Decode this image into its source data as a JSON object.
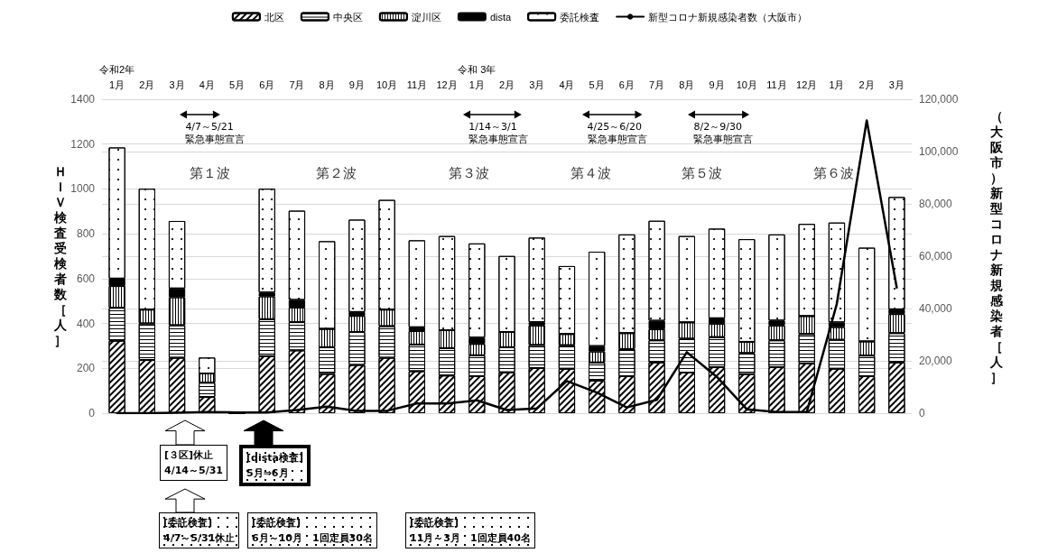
{
  "chart_data": {
    "type": "bar",
    "stacked": true,
    "categories": [
      "令和2年\n1月",
      "2月",
      "3月",
      "4月",
      "5月",
      "6月",
      "7月",
      "8月",
      "9月",
      "10月",
      "11月",
      "12月",
      "令和 3年\n1月",
      "2月",
      "3月",
      "4月",
      "5月",
      "6月",
      "7月",
      "8月",
      "9月",
      "10月",
      "11月",
      "12月",
      "1月",
      "2月",
      "3月"
    ],
    "ylabel": "ＨＩＶ検査受検者数［人］",
    "y2label": "（大阪市）新型コロナ新規感染者［人］",
    "series": [
      {
        "name": "北区",
        "color": "#000000",
        "values": [
          323,
          237,
          247,
          72,
          0,
          254,
          280,
          175,
          215,
          247,
          187,
          168,
          165,
          182,
          201,
          198,
          145,
          165,
          226,
          181,
          205,
          174,
          205,
          222,
          198,
          165,
          226
        ]
      },
      {
        "name": "中央区",
        "color": "#000000",
        "values": [
          147,
          163,
          145,
          64,
          0,
          165,
          126,
          119,
          147,
          141,
          119,
          122,
          93,
          112,
          103,
          105,
          81,
          121,
          99,
          151,
          134,
          94,
          120,
          131,
          129,
          92,
          131
        ]
      },
      {
        "name": "淀川区",
        "color": "#000000",
        "values": [
          97,
          62,
          125,
          41,
          0,
          102,
          65,
          82,
          72,
          74,
          60,
          80,
          51,
          68,
          87,
          50,
          49,
          71,
          49,
          73,
          60,
          50,
          66,
          80,
          57,
          63,
          85
        ]
      },
      {
        "name": "dista",
        "color": "#000000",
        "values": [
          33,
          0,
          39,
          0,
          0,
          17,
          34,
          0,
          17,
          0,
          17,
          0,
          28,
          0,
          15,
          0,
          24,
          0,
          38,
          0,
          24,
          0,
          22,
          0,
          21,
          0,
          21
        ]
      },
      {
        "name": "委託検査",
        "color": "#000000",
        "values": [
          585,
          539,
          301,
          71,
          0,
          463,
          398,
          391,
          412,
          489,
          388,
          420,
          420,
          339,
          377,
          303,
          421,
          440,
          446,
          385,
          400,
          458,
          384,
          411,
          445,
          418,
          501
        ]
      },
      {
        "name": "新型コロナ新規感染者数（大阪市）",
        "type": "line",
        "axis": "y2",
        "color": "#000000",
        "values": [
          0,
          0,
          200,
          400,
          300,
          300,
          1200,
          2500,
          900,
          900,
          3700,
          3700,
          4900,
          1200,
          1800,
          12300,
          7900,
          2200,
          5100,
          23300,
          13900,
          1500,
          400,
          400,
          41700,
          111900,
          48000
        ]
      }
    ],
    "ylim": [
      0,
      1400
    ],
    "yticks": [
      0,
      200,
      400,
      600,
      800,
      1000,
      1200,
      1400
    ],
    "y2lim": [
      0,
      120000
    ],
    "y2ticks": [
      0,
      {
        "value": 20000,
        "label": "20,000"
      },
      {
        "value": 40000,
        "label": "40,000"
      },
      {
        "value": 60000,
        "label": "60,000"
      },
      {
        "value": 80000,
        "label": "80,000"
      },
      {
        "value": 100000,
        "label": "100,000"
      },
      {
        "value": 120000,
        "label": "120,000"
      }
    ],
    "grid": "y",
    "legend": "top",
    "marker": "none",
    "line_style": "solid",
    "annotations": [
      "4/7～5/21\n緊急事態宣言",
      "1/14～3/1\n緊急事態宣言",
      "4/25～6/20\n緊急事態宣言",
      "8/2～9/30\n緊急事態宣言",
      "第１波",
      "第２波",
      "第３波",
      "第４波",
      "第５波",
      "第６波",
      "[３区]休止\n4/14～5/31",
      "[dista検査]\n5月⇒6月",
      "[委託検査]\n4/7～5/31休止",
      "[委託検査]\n6月～10月　1回定員30名",
      "[委託検査]\n11月～3月　1回定員40名"
    ]
  }
}
